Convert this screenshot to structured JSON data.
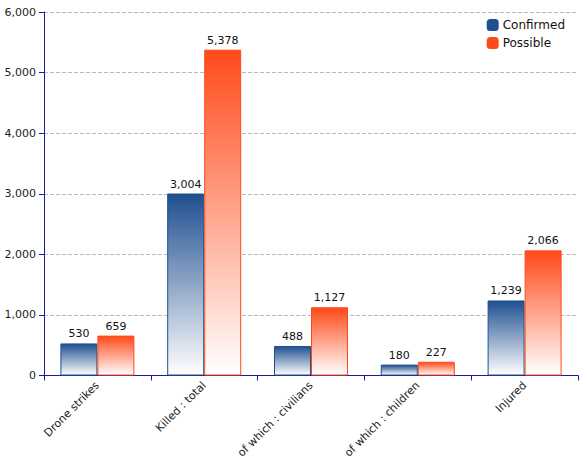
{
  "chart_data": {
    "type": "bar",
    "categories": [
      "Drone strikes",
      "Killed : total",
      "of which : civilians",
      "of which : children",
      "Injured"
    ],
    "series": [
      {
        "name": "Confirmed",
        "color": "#1f4f8f",
        "values": [
          530,
          3004,
          488,
          180,
          1239
        ],
        "value_labels": [
          "530",
          "3,004",
          "488",
          "180",
          "1,239"
        ]
      },
      {
        "name": "Possible",
        "color": "#ff4a1a",
        "values": [
          659,
          5378,
          1127,
          227,
          2066
        ],
        "value_labels": [
          "659",
          "5,378",
          "1,127",
          "227",
          "2,066"
        ]
      }
    ],
    "ylim": [
      0,
      6000
    ],
    "yticks": [
      0,
      {
        "value": 1000,
        "label": "1,000"
      },
      {
        "value": 2000,
        "label": "2,000"
      },
      {
        "value": 3000,
        "label": "3,000"
      },
      {
        "value": 4000,
        "label": "4,000"
      },
      {
        "value": 5000,
        "label": "5,000"
      },
      {
        "value": 6000,
        "label": "6,000"
      }
    ],
    "grid": true,
    "legend": "upper right",
    "data_labels": true
  }
}
